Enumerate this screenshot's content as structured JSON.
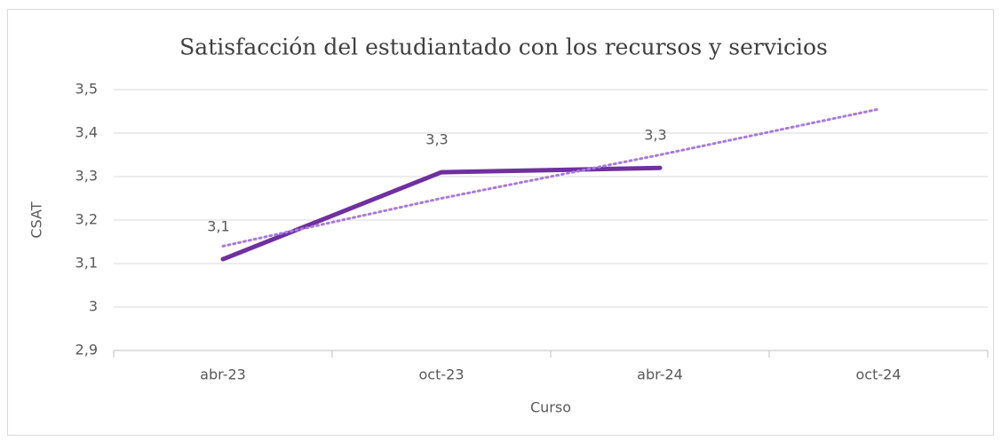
{
  "chart_data": {
    "type": "line",
    "title": "Satisfacción del estudiantado con los recursos y servicios",
    "x_label": "Curso",
    "y_label": "CSAT",
    "categories": [
      "abr-23",
      "oct-23",
      "abr-24",
      "oct-24"
    ],
    "series": [
      {
        "color": "#7030a0",
        "values": [
          3.11,
          3.31,
          3.32,
          null
        ],
        "value_labels": [
          "3,1",
          "3,3",
          "3,3",
          null
        ]
      },
      {
        "color": "#a77ae0",
        "style": "dotted",
        "values": [
          3.14,
          3.25,
          3.35,
          3.455
        ]
      }
    ],
    "ylim": [
      2.9,
      3.5
    ],
    "yticks": [
      {
        "value": 2.9,
        "label": "2,9"
      },
      3,
      {
        "value": 3.1,
        "label": "3,1"
      },
      {
        "value": 3.2,
        "label": "3,2"
      },
      {
        "value": 3.3,
        "label": "3,3"
      },
      {
        "value": 3.4,
        "label": "3,4"
      },
      {
        "value": 3.5,
        "label": "3,5"
      }
    ],
    "grid": true
  }
}
